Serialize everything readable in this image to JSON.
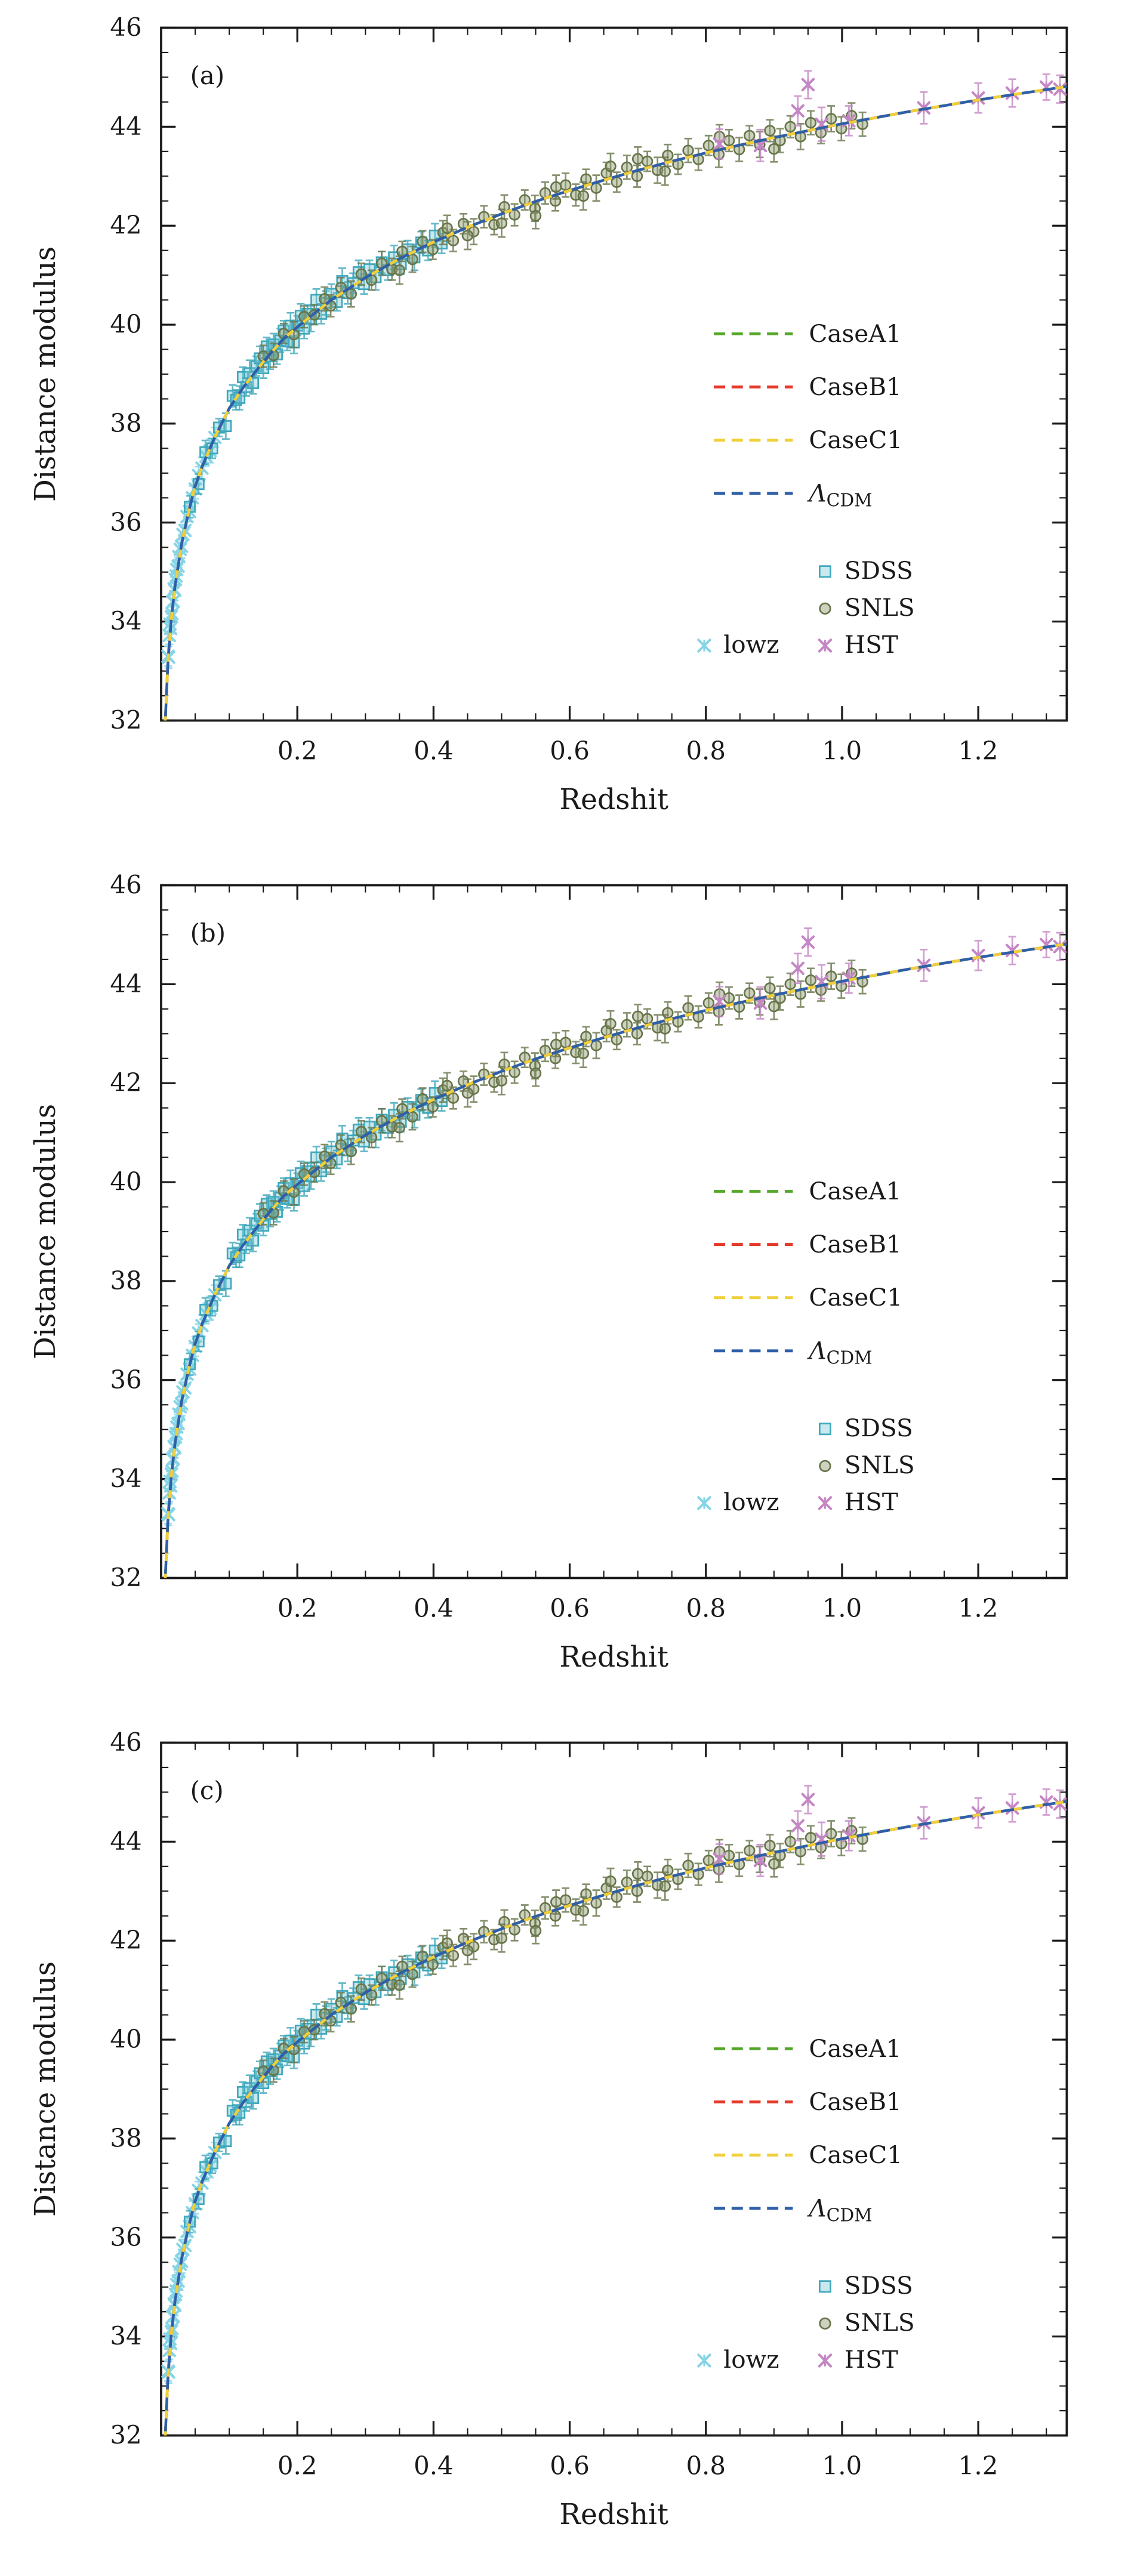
{
  "figure": {
    "title": "",
    "panel_tags": [
      "(a)",
      "(b)",
      "(c)"
    ]
  },
  "chart_data": {
    "type": "scatter",
    "xlabel": "Redshit",
    "ylabel": "Distance modulus",
    "xlim": [
      0,
      1.33
    ],
    "ylim": [
      32,
      46
    ],
    "xticks": [
      0.2,
      0.4,
      0.6,
      0.8,
      1.0,
      1.2
    ],
    "xtick_labels": [
      "0.2",
      "0.4",
      "0.6",
      "0.8",
      "1.0",
      "1.2"
    ],
    "yticks": [
      32,
      34,
      36,
      38,
      40,
      42,
      44,
      46
    ],
    "ytick_labels": [
      "32",
      "34",
      "36",
      "38",
      "40",
      "42",
      "44",
      "46"
    ],
    "grid": false,
    "panels": [
      "(a)",
      "(b)",
      "(c)"
    ],
    "model_curves": {
      "z": [
        0.005,
        0.01,
        0.015,
        0.02,
        0.03,
        0.04,
        0.05,
        0.06,
        0.08,
        0.1,
        0.12,
        0.15,
        0.18,
        0.2,
        0.25,
        0.3,
        0.35,
        0.4,
        0.45,
        0.5,
        0.55,
        0.6,
        0.65,
        0.7,
        0.75,
        0.8,
        0.85,
        0.9,
        0.95,
        1.0,
        1.1,
        1.2,
        1.3,
        1.33
      ],
      "mu": [
        31.66,
        33.17,
        34.05,
        34.69,
        35.57,
        36.2,
        36.73,
        37.13,
        37.76,
        38.31,
        38.72,
        39.25,
        39.72,
        39.95,
        40.5,
        40.95,
        41.33,
        41.67,
        41.97,
        42.24,
        42.49,
        42.71,
        42.92,
        43.12,
        43.3,
        43.47,
        43.63,
        43.78,
        43.92,
        44.06,
        44.31,
        44.54,
        44.75,
        44.81
      ],
      "lines": [
        {
          "name": "CaseA1",
          "color": "#55a828",
          "dashoffset": 5
        },
        {
          "name": "CaseB1",
          "color": "#e6392a",
          "dashoffset": 5
        },
        {
          "name": "CaseC1",
          "color": "#f0d03a",
          "dashoffset": 5
        },
        {
          "name": "Λ_CDM",
          "color": "#2f5fa8",
          "dashoffset": 0
        }
      ]
    },
    "series": [
      {
        "name": "lowz",
        "marker": "x",
        "color": "#86d4e6",
        "fill": "none",
        "points": [
          [
            0.01,
            33.3,
            0.2
          ],
          [
            0.011,
            33.28,
            0.22
          ],
          [
            0.012,
            33.72,
            0.18
          ],
          [
            0.013,
            33.95,
            0.2
          ],
          [
            0.014,
            33.86,
            0.24
          ],
          [
            0.015,
            34.1,
            0.2
          ],
          [
            0.016,
            34.16,
            0.18
          ],
          [
            0.017,
            34.4,
            0.22
          ],
          [
            0.018,
            34.41,
            0.2
          ],
          [
            0.019,
            34.66,
            0.24
          ],
          [
            0.02,
            34.63,
            0.2
          ],
          [
            0.021,
            34.85,
            0.18
          ],
          [
            0.022,
            34.92,
            0.22
          ],
          [
            0.023,
            35.05,
            0.2
          ],
          [
            0.025,
            35.12,
            0.18
          ],
          [
            0.026,
            35.31,
            0.22
          ],
          [
            0.028,
            35.46,
            0.2
          ],
          [
            0.03,
            35.52,
            0.24
          ],
          [
            0.032,
            35.76,
            0.2
          ],
          [
            0.035,
            35.84,
            0.18
          ],
          [
            0.038,
            36.12,
            0.22
          ],
          [
            0.042,
            36.22,
            0.2
          ],
          [
            0.046,
            36.5,
            0.24
          ],
          [
            0.05,
            36.68,
            0.2
          ],
          [
            0.055,
            36.95,
            0.18
          ],
          [
            0.06,
            37.1,
            0.22
          ],
          [
            0.066,
            37.34,
            0.2
          ],
          [
            0.072,
            37.45,
            0.24
          ],
          [
            0.079,
            37.72,
            0.2
          ]
        ]
      },
      {
        "name": "SDSS",
        "marker": "square",
        "color": "#3fa8bc",
        "fill": "rgba(120,200,214,0.40)",
        "points": [
          [
            0.042,
            36.32,
            0.22
          ],
          [
            0.055,
            36.78,
            0.2
          ],
          [
            0.065,
            37.42,
            0.24
          ],
          [
            0.075,
            37.5,
            0.2
          ],
          [
            0.085,
            37.92,
            0.18
          ],
          [
            0.095,
            37.95,
            0.26
          ],
          [
            0.105,
            38.56,
            0.22
          ],
          [
            0.11,
            38.48,
            0.2
          ],
          [
            0.115,
            38.52,
            0.24
          ],
          [
            0.12,
            38.94,
            0.2
          ],
          [
            0.125,
            38.74,
            0.18
          ],
          [
            0.13,
            39.02,
            0.26
          ],
          [
            0.135,
            38.82,
            0.22
          ],
          [
            0.14,
            39.16,
            0.2
          ],
          [
            0.145,
            39.32,
            0.24
          ],
          [
            0.15,
            39.12,
            0.2
          ],
          [
            0.155,
            39.56,
            0.18
          ],
          [
            0.16,
            39.36,
            0.26
          ],
          [
            0.165,
            39.6,
            0.22
          ],
          [
            0.17,
            39.4,
            0.2
          ],
          [
            0.175,
            39.68,
            0.24
          ],
          [
            0.18,
            39.88,
            0.2
          ],
          [
            0.185,
            39.66,
            0.18
          ],
          [
            0.19,
            39.98,
            0.26
          ],
          [
            0.195,
            39.64,
            0.22
          ],
          [
            0.2,
            39.98,
            0.2
          ],
          [
            0.205,
            40.18,
            0.24
          ],
          [
            0.21,
            39.92,
            0.2
          ],
          [
            0.215,
            40.22,
            0.18
          ],
          [
            0.22,
            40.12,
            0.26
          ],
          [
            0.228,
            40.5,
            0.22
          ],
          [
            0.235,
            40.22,
            0.2
          ],
          [
            0.242,
            40.44,
            0.24
          ],
          [
            0.25,
            40.62,
            0.2
          ],
          [
            0.258,
            40.46,
            0.18
          ],
          [
            0.266,
            40.88,
            0.26
          ],
          [
            0.274,
            40.64,
            0.22
          ],
          [
            0.282,
            40.84,
            0.2
          ],
          [
            0.29,
            41.06,
            0.24
          ],
          [
            0.298,
            40.82,
            0.2
          ],
          [
            0.306,
            41.12,
            0.18
          ],
          [
            0.315,
            40.96,
            0.26
          ],
          [
            0.324,
            41.26,
            0.22
          ],
          [
            0.333,
            41.1,
            0.2
          ],
          [
            0.342,
            41.36,
            0.24
          ],
          [
            0.352,
            41.22,
            0.2
          ],
          [
            0.362,
            41.52,
            0.18
          ],
          [
            0.372,
            41.36,
            0.26
          ],
          [
            0.382,
            41.66,
            0.22
          ],
          [
            0.392,
            41.5,
            0.2
          ],
          [
            0.402,
            41.8,
            0.24
          ],
          [
            0.412,
            41.64,
            0.2
          ]
        ]
      },
      {
        "name": "SNLS",
        "marker": "circle",
        "color": "#68754b",
        "fill": "rgba(141,155,110,0.45)",
        "points": [
          [
            0.15,
            39.36,
            0.22
          ],
          [
            0.165,
            39.38,
            0.24
          ],
          [
            0.18,
            39.82,
            0.2
          ],
          [
            0.195,
            39.8,
            0.26
          ],
          [
            0.21,
            40.16,
            0.22
          ],
          [
            0.225,
            40.2,
            0.2
          ],
          [
            0.24,
            40.52,
            0.24
          ],
          [
            0.249,
            40.38,
            0.22
          ],
          [
            0.264,
            40.75,
            0.2
          ],
          [
            0.279,
            40.62,
            0.26
          ],
          [
            0.294,
            41.02,
            0.22
          ],
          [
            0.309,
            40.9,
            0.2
          ],
          [
            0.324,
            41.24,
            0.24
          ],
          [
            0.339,
            41.12,
            0.22
          ],
          [
            0.354,
            41.48,
            0.2
          ],
          [
            0.369,
            41.32,
            0.26
          ],
          [
            0.384,
            41.68,
            0.22
          ],
          [
            0.399,
            41.52,
            0.2
          ],
          [
            0.414,
            41.86,
            0.24
          ],
          [
            0.429,
            41.7,
            0.22
          ],
          [
            0.444,
            42.04,
            0.2
          ],
          [
            0.459,
            41.88,
            0.26
          ],
          [
            0.474,
            42.18,
            0.22
          ],
          [
            0.489,
            42.02,
            0.2
          ],
          [
            0.504,
            42.38,
            0.24
          ],
          [
            0.519,
            42.22,
            0.22
          ],
          [
            0.534,
            42.52,
            0.2
          ],
          [
            0.549,
            42.35,
            0.26
          ],
          [
            0.564,
            42.66,
            0.22
          ],
          [
            0.579,
            42.5,
            0.2
          ],
          [
            0.594,
            42.82,
            0.24
          ],
          [
            0.609,
            42.62,
            0.22
          ],
          [
            0.624,
            42.94,
            0.2
          ],
          [
            0.639,
            42.76,
            0.26
          ],
          [
            0.654,
            43.06,
            0.22
          ],
          [
            0.669,
            42.88,
            0.2
          ],
          [
            0.684,
            43.18,
            0.24
          ],
          [
            0.699,
            43.0,
            0.22
          ],
          [
            0.714,
            43.3,
            0.2
          ],
          [
            0.729,
            43.12,
            0.26
          ],
          [
            0.744,
            43.42,
            0.22
          ],
          [
            0.759,
            43.24,
            0.2
          ],
          [
            0.774,
            43.52,
            0.24
          ],
          [
            0.789,
            43.34,
            0.22
          ],
          [
            0.804,
            43.62,
            0.2
          ],
          [
            0.819,
            43.44,
            0.26
          ],
          [
            0.834,
            43.72,
            0.22
          ],
          [
            0.849,
            43.54,
            0.24
          ],
          [
            0.864,
            43.82,
            0.2
          ],
          [
            0.879,
            43.64,
            0.26
          ],
          [
            0.894,
            43.92,
            0.22
          ],
          [
            0.909,
            43.72,
            0.24
          ],
          [
            0.924,
            44.0,
            0.22
          ],
          [
            0.939,
            43.8,
            0.26
          ],
          [
            0.954,
            44.08,
            0.24
          ],
          [
            0.969,
            43.88,
            0.22
          ],
          [
            0.984,
            44.16,
            0.26
          ],
          [
            0.999,
            43.96,
            0.24
          ],
          [
            1.014,
            44.22,
            0.26
          ],
          [
            1.03,
            44.05,
            0.24
          ],
          [
            0.35,
            41.1,
            0.28
          ],
          [
            0.42,
            41.95,
            0.26
          ],
          [
            0.5,
            42.05,
            0.28
          ],
          [
            0.58,
            42.78,
            0.24
          ],
          [
            0.66,
            43.2,
            0.26
          ],
          [
            0.74,
            43.1,
            0.28
          ],
          [
            0.82,
            43.8,
            0.24
          ],
          [
            0.9,
            43.55,
            0.26
          ],
          [
            0.62,
            42.6,
            0.28
          ],
          [
            0.7,
            43.35,
            0.24
          ],
          [
            0.55,
            42.2,
            0.26
          ],
          [
            0.45,
            41.8,
            0.28
          ]
        ]
      },
      {
        "name": "HST",
        "marker": "x",
        "color": "#c486c4",
        "fill": "none",
        "points": [
          [
            0.82,
            43.65,
            0.3
          ],
          [
            0.88,
            43.62,
            0.32
          ],
          [
            0.935,
            44.32,
            0.3
          ],
          [
            0.95,
            44.85,
            0.28
          ],
          [
            0.97,
            44.05,
            0.34
          ],
          [
            1.01,
            44.12,
            0.3
          ],
          [
            1.12,
            44.38,
            0.32
          ],
          [
            1.2,
            44.58,
            0.3
          ],
          [
            1.25,
            44.68,
            0.28
          ],
          [
            1.3,
            44.8,
            0.26
          ],
          [
            1.32,
            44.76,
            0.28
          ]
        ]
      }
    ],
    "legend_lines_labels": [
      "CaseA1",
      "CaseB1",
      "CaseC1",
      "Λ_CDM"
    ],
    "legend_marker_order": [
      "SDSS",
      "SNLS",
      "HST"
    ],
    "legend_lowz_label": "lowz",
    "legend_position": "lower right"
  },
  "colors": {
    "axis": "#1a1a1a",
    "background": "#ffffff"
  }
}
